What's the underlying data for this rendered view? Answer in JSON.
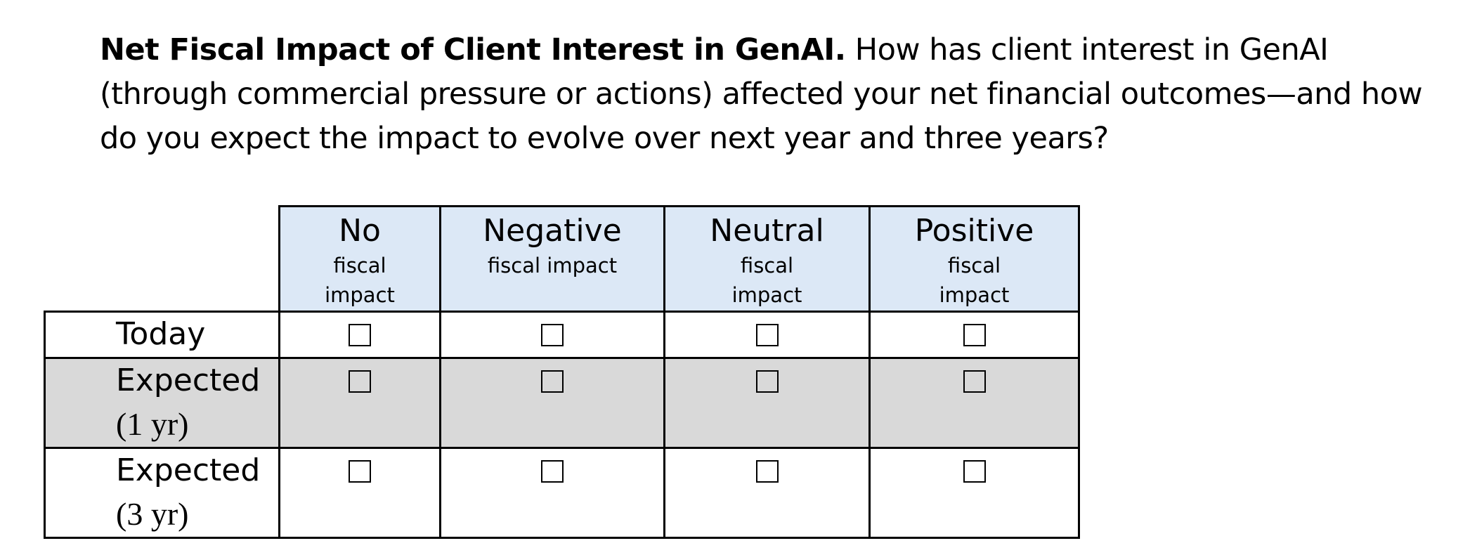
{
  "question": {
    "title": "Net Fiscal Impact of Client Interest in GenAI.",
    "body": " How has client interest in GenAI (through commercial pressure or actions) affected your net financial outcomes—and how do you expect the impact to evolve over next year and three years?"
  },
  "columns": [
    {
      "main": "No",
      "sub": "fiscal impact"
    },
    {
      "main": "Negative",
      "sub": "fiscal impact"
    },
    {
      "main": "Neutral",
      "sub": "fiscal impact"
    },
    {
      "main": "Positive",
      "sub": "fiscal impact"
    }
  ],
  "rows": [
    {
      "line1": "Today",
      "line2": ""
    },
    {
      "line1": "Expected",
      "line2": "(1 yr)"
    },
    {
      "line1": "Expected",
      "line2": "(3 yr)"
    }
  ],
  "colors": {
    "header_bg": "#dce8f6",
    "shaded_row_bg": "#d9d9d9",
    "border": "#000000"
  }
}
